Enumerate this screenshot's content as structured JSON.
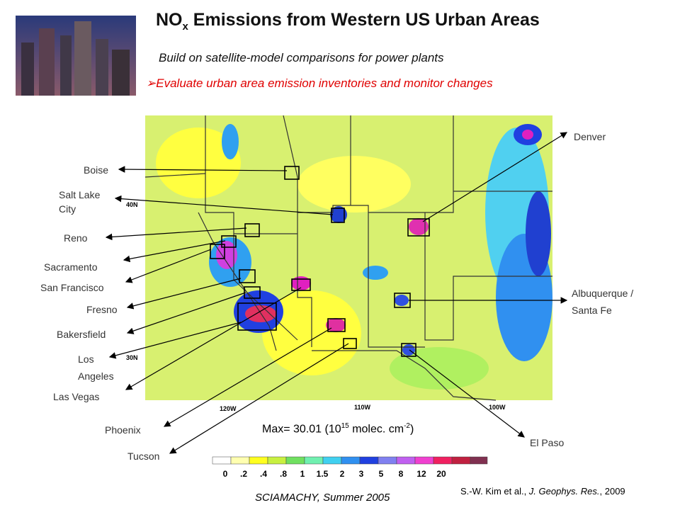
{
  "header": {
    "title": {
      "main": "NO",
      "sub": "x",
      "rest": " Emissions from Western US Urban Areas"
    },
    "bullets": [
      "Build on satellite-model comparisons for power plants",
      "Evaluate urban area emission inventories and monitor changes"
    ]
  },
  "map": {
    "cities": [
      "Boise",
      "Salt Lake City",
      "Reno",
      "Sacramento",
      "San Francisco",
      "Fresno",
      "Bakersfield",
      "Los Angeles",
      "Las Vegas",
      "Phoenix",
      "Tucson",
      "Denver",
      "Albuquerque / Santa Fe",
      "El Paso"
    ],
    "lat_labels": [
      "40N",
      "30N"
    ],
    "lon_labels": [
      "120W",
      "110W",
      "100W"
    ],
    "max_label": [
      "Max= 30.01 (10",
      "15",
      " molec. cm",
      "-2",
      ")"
    ]
  },
  "colorbar": {
    "labels": [
      "0",
      ".2",
      ".4",
      ".8",
      "1",
      "1.5",
      "2",
      "3",
      "5",
      "8",
      "12",
      "20"
    ]
  },
  "footer": {
    "source": "SCIAMACHY, Summer 2005",
    "citation": [
      "S.-W. Kim et al., ",
      "J. Geophys. Res.",
      ", 2009"
    ]
  }
}
